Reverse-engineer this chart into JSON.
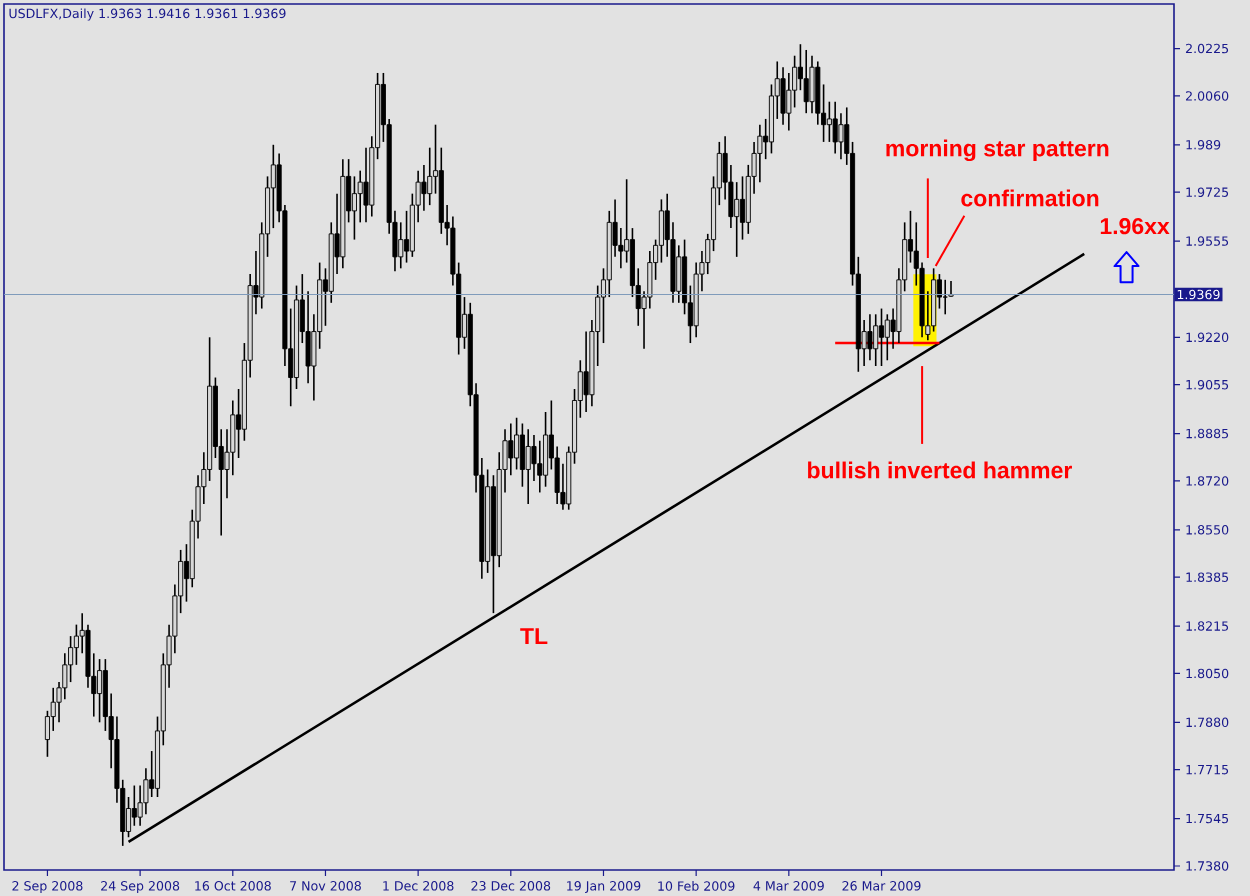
{
  "chart_data": {
    "type": "candlestick",
    "title": "USDLFX,Daily 1.9363 1.9416 1.9361 1.9369",
    "categories": [
      "2 Sep 2008",
      null,
      null,
      null,
      null,
      null,
      null,
      null,
      null,
      null,
      null,
      null,
      null,
      null,
      null,
      null,
      "24 Sep 2008",
      null,
      null,
      null,
      null,
      null,
      null,
      null,
      null,
      null,
      null,
      null,
      null,
      null,
      null,
      null,
      "16 Oct 2008",
      null,
      null,
      null,
      null,
      null,
      null,
      null,
      null,
      null,
      null,
      null,
      null,
      null,
      null,
      null,
      "7 Nov 2008",
      null,
      null,
      null,
      null,
      null,
      null,
      null,
      null,
      null,
      null,
      null,
      null,
      null,
      null,
      null,
      "1 Dec 2008",
      null,
      null,
      null,
      null,
      null,
      null,
      null,
      null,
      null,
      null,
      null,
      null,
      null,
      null,
      null,
      "23 Dec 2008",
      null,
      null,
      null,
      null,
      null,
      null,
      null,
      null,
      null,
      null,
      null,
      null,
      null,
      null,
      null,
      "19 Jan 2009",
      null,
      null,
      null,
      null,
      null,
      null,
      null,
      null,
      null,
      null,
      null,
      null,
      null,
      null,
      null,
      "10 Feb 2009",
      null,
      null,
      null,
      null,
      null,
      null,
      null,
      null,
      null,
      null,
      null,
      null,
      null,
      null,
      null,
      "4 Mar 2009",
      null,
      null,
      null,
      null,
      null,
      null,
      null,
      null,
      null,
      null,
      null,
      null,
      null,
      null,
      null,
      "26 Mar 2009",
      null,
      null,
      null,
      null,
      null,
      null,
      null,
      null,
      null,
      null,
      null,
      null,
      null,
      null,
      null,
      null,
      null,
      null,
      null,
      null,
      null,
      null,
      null,
      null,
      null,
      null,
      null,
      null,
      null,
      null,
      null,
      null,
      null,
      null,
      null,
      null,
      null,
      null,
      null,
      null,
      null,
      null,
      null,
      null,
      null,
      null,
      null,
      null,
      null,
      null
    ],
    "ylim": [
      1.7366,
      2.038
    ],
    "yticks": [
      2.0225,
      {
        "value": 2.006,
        "label": "2.0060"
      },
      1.989,
      1.9725,
      1.9555,
      {
        "value": 1.922,
        "label": "1.9220"
      },
      1.9055,
      1.8885,
      {
        "value": 1.872,
        "label": "1.8720"
      },
      {
        "value": 1.855,
        "label": "1.8550"
      },
      1.8385,
      1.8215,
      {
        "value": 1.805,
        "label": "1.8050"
      },
      {
        "value": 1.788,
        "label": "1.7880"
      },
      1.7715,
      1.7545,
      {
        "value": 1.738,
        "label": "1.7380"
      }
    ],
    "ref_lines": [
      {
        "axis": "y",
        "value": 1.9369,
        "label": "1.9369",
        "color": "#7f9bbb"
      }
    ],
    "annotations": [
      "morning star pattern",
      "confirmation",
      "bullish inverted hammer",
      "TL",
      "1.96xx"
    ],
    "series": [
      {
        "color": "#000000",
        "ohlc": [
          [
            1.782,
            1.792,
            1.776,
            1.79
          ],
          [
            1.79,
            1.8,
            1.785,
            1.795
          ],
          [
            1.795,
            1.802,
            1.788,
            1.8
          ],
          [
            1.8,
            1.812,
            1.796,
            1.808
          ],
          [
            1.808,
            1.818,
            1.802,
            1.814
          ],
          [
            1.814,
            1.822,
            1.808,
            1.818
          ],
          [
            1.818,
            1.826,
            1.812,
            1.82
          ],
          [
            1.82,
            1.822,
            1.8,
            1.804
          ],
          [
            1.804,
            1.812,
            1.79,
            1.798
          ],
          [
            1.798,
            1.81,
            1.788,
            1.806
          ],
          [
            1.806,
            1.81,
            1.785,
            1.79
          ],
          [
            1.79,
            1.798,
            1.772,
            1.782
          ],
          [
            1.782,
            1.79,
            1.76,
            1.765
          ],
          [
            1.765,
            1.768,
            1.745,
            1.75
          ],
          [
            1.75,
            1.762,
            1.748,
            1.758
          ],
          [
            1.758,
            1.766,
            1.752,
            1.755
          ],
          [
            1.755,
            1.766,
            1.752,
            1.76
          ],
          [
            1.76,
            1.772,
            1.756,
            1.768
          ],
          [
            1.768,
            1.778,
            1.762,
            1.765
          ],
          [
            1.765,
            1.79,
            1.762,
            1.785
          ],
          [
            1.785,
            1.812,
            1.78,
            1.808
          ],
          [
            1.808,
            1.822,
            1.8,
            1.818
          ],
          [
            1.818,
            1.836,
            1.812,
            1.832
          ],
          [
            1.832,
            1.848,
            1.826,
            1.844
          ],
          [
            1.844,
            1.85,
            1.83,
            1.838
          ],
          [
            1.838,
            1.862,
            1.835,
            1.858
          ],
          [
            1.858,
            1.874,
            1.852,
            1.87
          ],
          [
            1.87,
            1.882,
            1.864,
            1.876
          ],
          [
            1.876,
            1.922,
            1.872,
            1.905
          ],
          [
            1.905,
            1.908,
            1.88,
            1.884
          ],
          [
            1.884,
            1.89,
            1.853,
            1.876
          ],
          [
            1.876,
            1.89,
            1.866,
            1.882
          ],
          [
            1.882,
            1.9,
            1.874,
            1.895
          ],
          [
            1.895,
            1.904,
            1.88,
            1.89
          ],
          [
            1.89,
            1.92,
            1.886,
            1.914
          ],
          [
            1.914,
            1.944,
            1.908,
            1.94
          ],
          [
            1.94,
            1.952,
            1.93,
            1.936
          ],
          [
            1.936,
            1.962,
            1.932,
            1.958
          ],
          [
            1.958,
            1.978,
            1.95,
            1.974
          ],
          [
            1.974,
            1.989,
            1.96,
            1.982
          ],
          [
            1.982,
            1.986,
            1.962,
            1.966
          ],
          [
            1.966,
            1.968,
            1.912,
            1.918
          ],
          [
            1.918,
            1.932,
            1.898,
            1.908
          ],
          [
            1.908,
            1.94,
            1.904,
            1.935
          ],
          [
            1.935,
            1.944,
            1.92,
            1.924
          ],
          [
            1.924,
            1.938,
            1.906,
            1.912
          ],
          [
            1.912,
            1.93,
            1.9,
            1.924
          ],
          [
            1.924,
            1.948,
            1.918,
            1.942
          ],
          [
            1.942,
            1.946,
            1.926,
            1.938
          ],
          [
            1.938,
            1.962,
            1.934,
            1.958
          ],
          [
            1.958,
            1.972,
            1.944,
            1.95
          ],
          [
            1.95,
            1.984,
            1.946,
            1.978
          ],
          [
            1.978,
            1.984,
            1.962,
            1.966
          ],
          [
            1.966,
            1.978,
            1.956,
            1.972
          ],
          [
            1.972,
            1.98,
            1.962,
            1.976
          ],
          [
            1.976,
            1.988,
            1.962,
            1.968
          ],
          [
            1.968,
            1.992,
            1.964,
            1.988
          ],
          [
            1.988,
            2.014,
            1.984,
            2.01
          ],
          [
            2.01,
            2.014,
            1.99,
            1.996
          ],
          [
            1.996,
            1.998,
            1.958,
            1.962
          ],
          [
            1.962,
            1.966,
            1.945,
            1.95
          ],
          [
            1.95,
            1.962,
            1.946,
            1.956
          ],
          [
            1.956,
            1.966,
            1.948,
            1.952
          ],
          [
            1.952,
            1.972,
            1.95,
            1.968
          ],
          [
            1.968,
            1.98,
            1.962,
            1.976
          ],
          [
            1.976,
            1.982,
            1.966,
            1.972
          ],
          [
            1.972,
            1.988,
            1.968,
            1.978
          ],
          [
            1.978,
            1.996,
            1.972,
            1.98
          ],
          [
            1.98,
            1.988,
            1.958,
            1.962
          ],
          [
            1.962,
            1.968,
            1.954,
            1.96
          ],
          [
            1.96,
            1.964,
            1.94,
            1.944
          ],
          [
            1.944,
            1.948,
            1.916,
            1.922
          ],
          [
            1.922,
            1.936,
            1.918,
            1.93
          ],
          [
            1.93,
            1.934,
            1.898,
            1.902
          ],
          [
            1.902,
            1.906,
            1.868,
            1.874
          ],
          [
            1.874,
            1.88,
            1.838,
            1.844
          ],
          [
            1.844,
            1.876,
            1.84,
            1.87
          ],
          [
            1.87,
            1.874,
            1.826,
            1.846
          ],
          [
            1.846,
            1.882,
            1.842,
            1.876
          ],
          [
            1.876,
            1.89,
            1.868,
            1.886
          ],
          [
            1.886,
            1.892,
            1.874,
            1.88
          ],
          [
            1.88,
            1.894,
            1.876,
            1.888
          ],
          [
            1.888,
            1.892,
            1.87,
            1.876
          ],
          [
            1.876,
            1.89,
            1.864,
            1.884
          ],
          [
            1.884,
            1.888,
            1.872,
            1.878
          ],
          [
            1.878,
            1.886,
            1.868,
            1.874
          ],
          [
            1.874,
            1.896,
            1.87,
            1.888
          ],
          [
            1.888,
            1.9,
            1.876,
            1.88
          ],
          [
            1.88,
            1.884,
            1.864,
            1.868
          ],
          [
            1.868,
            1.878,
            1.862,
            1.864
          ],
          [
            1.864,
            1.884,
            1.862,
            1.882
          ],
          [
            1.882,
            1.904,
            1.878,
            1.9
          ],
          [
            1.9,
            1.914,
            1.894,
            1.91
          ],
          [
            1.91,
            1.924,
            1.896,
            1.902
          ],
          [
            1.902,
            1.928,
            1.898,
            1.924
          ],
          [
            1.924,
            1.94,
            1.912,
            1.936
          ],
          [
            1.936,
            1.946,
            1.92,
            1.942
          ],
          [
            1.942,
            1.966,
            1.936,
            1.962
          ],
          [
            1.962,
            1.97,
            1.95,
            1.954
          ],
          [
            1.954,
            1.96,
            1.946,
            1.952
          ],
          [
            1.952,
            1.977,
            1.948,
            1.956
          ],
          [
            1.956,
            1.96,
            1.936,
            1.94
          ],
          [
            1.94,
            1.946,
            1.926,
            1.932
          ],
          [
            1.932,
            1.938,
            1.918,
            1.936
          ],
          [
            1.936,
            1.952,
            1.932,
            1.948
          ],
          [
            1.948,
            1.956,
            1.942,
            1.954
          ],
          [
            1.954,
            1.97,
            1.948,
            1.966
          ],
          [
            1.966,
            1.972,
            1.95,
            1.956
          ],
          [
            1.956,
            1.962,
            1.934,
            1.938
          ],
          [
            1.938,
            1.954,
            1.934,
            1.95
          ],
          [
            1.95,
            1.956,
            1.93,
            1.934
          ],
          [
            1.934,
            1.94,
            1.92,
            1.926
          ],
          [
            1.926,
            1.948,
            1.922,
            1.944
          ],
          [
            1.944,
            1.952,
            1.938,
            1.948
          ],
          [
            1.948,
            1.958,
            1.944,
            1.956
          ],
          [
            1.956,
            1.978,
            1.952,
            1.974
          ],
          [
            1.974,
            1.99,
            1.968,
            1.986
          ],
          [
            1.986,
            1.992,
            1.97,
            1.976
          ],
          [
            1.976,
            1.982,
            1.96,
            1.964
          ],
          [
            1.964,
            1.976,
            1.95,
            1.97
          ],
          [
            1.97,
            1.978,
            1.956,
            1.962
          ],
          [
            1.962,
            1.982,
            1.958,
            1.978
          ],
          [
            1.978,
            1.99,
            1.972,
            1.986
          ],
          [
            1.986,
            1.996,
            1.976,
            1.992
          ],
          [
            1.992,
            1.998,
            1.984,
            1.99
          ],
          [
            1.99,
            2.01,
            1.986,
            2.006
          ],
          [
            2.006,
            2.018,
            1.998,
            2.012
          ],
          [
            2.012,
            2.016,
            1.996,
            2.0
          ],
          [
            2.0,
            2.014,
            1.994,
            2.008
          ],
          [
            2.008,
            2.02,
            2.002,
            2.016
          ],
          [
            2.016,
            2.024,
            2.008,
            2.012
          ],
          [
            2.012,
            2.022,
            2.0,
            2.004
          ],
          [
            2.004,
            2.02,
            2.0,
            2.016
          ],
          [
            2.016,
            2.018,
            1.996,
            2.0
          ],
          [
            2.0,
            2.01,
            1.99,
            1.996
          ],
          [
            1.996,
            2.004,
            1.99,
            1.998
          ],
          [
            1.998,
            2.004,
            1.986,
            1.99
          ],
          [
            1.99,
            2.0,
            1.984,
            1.996
          ],
          [
            1.996,
            2.002,
            1.982,
            1.986
          ],
          [
            1.986,
            1.99,
            1.94,
            1.944
          ],
          [
            1.944,
            1.95,
            1.91,
            1.918
          ],
          [
            1.918,
            1.928,
            1.912,
            1.924
          ],
          [
            1.924,
            1.93,
            1.914,
            1.918
          ],
          [
            1.918,
            1.93,
            1.912,
            1.926
          ],
          [
            1.926,
            1.932,
            1.912,
            1.922
          ],
          [
            1.922,
            1.93,
            1.914,
            1.928
          ],
          [
            1.928,
            1.932,
            1.918,
            1.924
          ],
          [
            1.924,
            1.946,
            1.92,
            1.942
          ],
          [
            1.942,
            1.962,
            1.938,
            1.956
          ],
          [
            1.956,
            1.966,
            1.948,
            1.952
          ],
          [
            1.952,
            1.962,
            1.94,
            1.946
          ],
          [
            1.946,
            1.948,
            1.922,
            1.926
          ],
          [
            1.923,
            1.938,
            1.921,
            1.926
          ],
          [
            1.926,
            1.946,
            1.924,
            1.942
          ],
          [
            1.942,
            1.944,
            1.932,
            1.936
          ],
          [
            1.936,
            1.942,
            1.93,
            1.936
          ],
          [
            1.9363,
            1.9416,
            1.9361,
            1.9369
          ],
          null,
          null,
          null,
          null,
          null,
          null,
          null,
          null,
          null,
          null,
          null,
          null,
          null,
          null,
          null,
          null,
          null,
          null,
          null,
          null,
          null,
          null,
          null,
          null,
          null,
          null,
          null,
          null,
          null,
          null,
          null,
          null,
          null,
          null,
          null,
          null,
          null,
          null
        ]
      },
      {
        "type": "line",
        "color": "#000000",
        "values": [
          null,
          null,
          null,
          null,
          null,
          null,
          null,
          null,
          null,
          null,
          null,
          null,
          null,
          null,
          1.7464,
          null,
          null,
          null,
          null,
          null,
          null,
          null,
          null,
          null,
          null,
          null,
          null,
          null,
          null,
          null,
          null,
          null,
          null,
          null,
          null,
          null,
          null,
          null,
          null,
          null,
          null,
          null,
          null,
          null,
          null,
          null,
          null,
          null,
          null,
          null,
          null,
          null,
          null,
          null,
          null,
          null,
          null,
          null,
          null,
          null,
          null,
          null,
          null,
          null,
          null,
          null,
          null,
          null,
          null,
          null,
          null,
          null,
          null,
          null,
          null,
          null,
          null,
          null,
          null,
          null,
          null,
          null,
          null,
          null,
          null,
          null,
          null,
          null,
          null,
          null,
          null,
          null,
          null,
          null,
          null,
          null,
          null,
          null,
          null,
          null,
          null,
          null,
          null,
          null,
          null,
          null,
          null,
          null,
          null,
          null,
          null,
          null,
          null,
          null,
          null,
          null,
          null,
          null,
          null,
          null,
          null,
          null,
          null,
          null,
          null,
          null,
          null,
          null,
          null,
          null,
          null,
          null,
          null,
          null,
          null,
          null,
          null,
          null,
          null,
          null,
          null,
          null,
          null,
          null,
          null,
          null,
          null,
          null,
          null,
          null,
          null,
          null,
          null,
          null,
          null,
          null,
          null,
          null,
          null,
          null,
          null,
          null,
          null,
          null,
          null,
          null,
          null,
          null,
          null,
          null,
          null,
          null,
          null,
          null,
          null,
          null,
          null,
          null,
          null,
          1.951,
          null,
          null,
          null,
          null,
          null,
          null,
          null,
          null,
          null,
          null,
          null,
          null,
          null,
          null,
          null
        ]
      },
      {
        "type": "line",
        "color": "#ff0000",
        "values": [
          null,
          null,
          null,
          null,
          null,
          null,
          null,
          null,
          null,
          null,
          null,
          null,
          null,
          null,
          null,
          null,
          null,
          null,
          null,
          null,
          null,
          null,
          null,
          null,
          null,
          null,
          null,
          null,
          null,
          null,
          null,
          null,
          null,
          null,
          null,
          null,
          null,
          null,
          null,
          null,
          null,
          null,
          null,
          null,
          null,
          null,
          null,
          null,
          null,
          null,
          null,
          null,
          null,
          null,
          null,
          null,
          null,
          null,
          null,
          null,
          null,
          null,
          null,
          null,
          null,
          null,
          null,
          null,
          null,
          null,
          null,
          null,
          null,
          null,
          null,
          null,
          null,
          null,
          null,
          null,
          null,
          null,
          null,
          null,
          null,
          null,
          null,
          null,
          null,
          null,
          null,
          null,
          null,
          null,
          null,
          null,
          null,
          null,
          null,
          null,
          null,
          null,
          null,
          null,
          null,
          null,
          null,
          null,
          null,
          null,
          null,
          null,
          null,
          null,
          null,
          null,
          null,
          null,
          null,
          null,
          null,
          null,
          null,
          null,
          null,
          null,
          null,
          null,
          null,
          null,
          null,
          null,
          null,
          null,
          null,
          null,
          1.92,
          null,
          null,
          null,
          null,
          null,
          null,
          null,
          null,
          null,
          null,
          null,
          null,
          null,
          null,
          null,
          null,
          null,
          1.92,
          null,
          null,
          null,
          null,
          null,
          null,
          null,
          null,
          null,
          null,
          null,
          null,
          null,
          null,
          null,
          null,
          null,
          null,
          null,
          null,
          null,
          null,
          null,
          null,
          null,
          null,
          null,
          null,
          null,
          null,
          null,
          null,
          null,
          null,
          null,
          null,
          null,
          null,
          null,
          null
        ]
      }
    ]
  }
}
